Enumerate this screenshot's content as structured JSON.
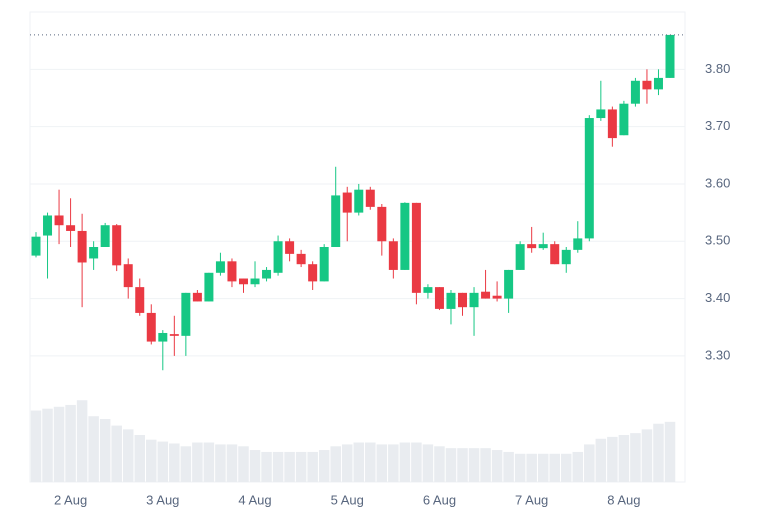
{
  "chart_data": {
    "type": "candlestick",
    "categories": [
      null,
      null,
      null,
      "2 Aug",
      null,
      null,
      null,
      null,
      null,
      null,
      null,
      "3 Aug",
      null,
      null,
      null,
      null,
      null,
      null,
      null,
      "4 Aug",
      null,
      null,
      null,
      null,
      null,
      null,
      null,
      "5 Aug",
      null,
      null,
      null,
      null,
      null,
      null,
      null,
      "6 Aug",
      null,
      null,
      null,
      null,
      null,
      null,
      null,
      "7 Aug",
      null,
      null,
      null,
      null,
      null,
      null,
      null,
      "8 Aug",
      null,
      null,
      null,
      null
    ],
    "open": [
      3.475,
      3.51,
      3.545,
      3.528,
      3.518,
      3.47,
      3.49,
      3.528,
      3.46,
      3.42,
      3.375,
      3.325,
      3.338,
      3.335,
      3.41,
      3.395,
      3.445,
      3.465,
      3.435,
      3.425,
      3.435,
      3.445,
      3.5,
      3.478,
      3.46,
      3.43,
      3.49,
      3.585,
      3.55,
      3.59,
      3.56,
      3.5,
      3.45,
      3.567,
      3.41,
      3.42,
      3.382,
      3.41,
      3.385,
      3.412,
      3.405,
      3.4,
      3.45,
      3.495,
      3.488,
      3.495,
      3.46,
      3.485,
      3.505,
      3.715,
      3.73,
      3.685,
      3.74,
      3.78,
      3.765,
      3.785
    ],
    "high": [
      3.516,
      3.55,
      3.59,
      3.575,
      3.548,
      3.5,
      3.532,
      3.53,
      3.47,
      3.435,
      3.39,
      3.345,
      3.37,
      3.41,
      3.415,
      3.445,
      3.48,
      3.47,
      3.435,
      3.465,
      3.455,
      3.51,
      3.505,
      3.485,
      3.465,
      3.495,
      3.63,
      3.595,
      3.6,
      3.595,
      3.565,
      3.505,
      3.568,
      3.567,
      3.425,
      3.42,
      3.415,
      3.41,
      3.42,
      3.45,
      3.43,
      3.45,
      3.5,
      3.525,
      3.515,
      3.5,
      3.49,
      3.535,
      3.72,
      3.78,
      3.735,
      3.745,
      3.785,
      3.8,
      3.8,
      3.86
    ],
    "low": [
      3.472,
      3.435,
      3.495,
      3.49,
      3.385,
      3.45,
      3.49,
      3.448,
      3.4,
      3.37,
      3.32,
      3.275,
      3.3,
      3.3,
      3.395,
      3.395,
      3.44,
      3.42,
      3.41,
      3.42,
      3.43,
      3.44,
      3.465,
      3.455,
      3.415,
      3.43,
      3.49,
      3.5,
      3.545,
      3.555,
      3.475,
      3.435,
      3.45,
      3.39,
      3.4,
      3.38,
      3.355,
      3.37,
      3.335,
      3.4,
      3.395,
      3.375,
      3.45,
      3.48,
      3.485,
      3.46,
      3.445,
      3.48,
      3.5,
      3.71,
      3.665,
      3.685,
      3.735,
      3.74,
      3.755,
      3.785
    ],
    "close": [
      3.508,
      3.545,
      3.528,
      3.518,
      3.463,
      3.49,
      3.528,
      3.458,
      3.42,
      3.375,
      3.325,
      3.34,
      3.335,
      3.41,
      3.395,
      3.445,
      3.465,
      3.43,
      3.425,
      3.435,
      3.45,
      3.5,
      3.478,
      3.46,
      3.43,
      3.49,
      3.58,
      3.55,
      3.59,
      3.56,
      3.5,
      3.45,
      3.567,
      3.41,
      3.42,
      3.382,
      3.41,
      3.385,
      3.41,
      3.4,
      3.4,
      3.45,
      3.495,
      3.488,
      3.495,
      3.46,
      3.485,
      3.505,
      3.715,
      3.73,
      3.68,
      3.74,
      3.78,
      3.765,
      3.785,
      3.86
    ],
    "volume": [
      76,
      78,
      80,
      82,
      87,
      70,
      67,
      60,
      56,
      50,
      45,
      43,
      41,
      38,
      42,
      42,
      40,
      40,
      38,
      34,
      32,
      32,
      32,
      32,
      32,
      34,
      38,
      40,
      42,
      42,
      40,
      40,
      42,
      42,
      40,
      38,
      36,
      36,
      36,
      36,
      34,
      32,
      30,
      30,
      30,
      30,
      30,
      32,
      40,
      46,
      48,
      50,
      52,
      56,
      62,
      64
    ],
    "up_color": "#16c784",
    "down_color": "#ea3943",
    "volume_color": "#e9ecf0",
    "ylim": [
      3.08,
      3.9
    ],
    "yticks": [
      {
        "value": 3.3,
        "label": "3.30"
      },
      {
        "value": 3.4,
        "label": "3.40"
      },
      {
        "value": 3.5,
        "label": "3.50"
      },
      {
        "value": 3.6,
        "label": "3.60"
      },
      {
        "value": 3.7,
        "label": "3.70"
      },
      {
        "value": 3.8,
        "label": "3.80"
      }
    ],
    "y2lim": [
      0,
      500
    ],
    "grid": true
  }
}
